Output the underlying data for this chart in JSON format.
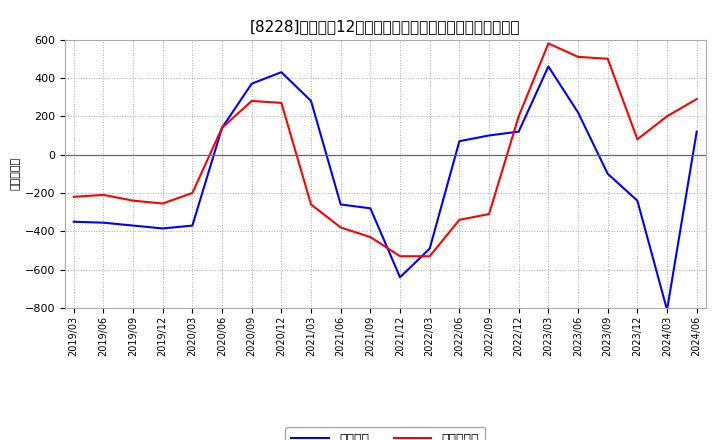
{
  "title": "[8228]　利益の12か月移動合計の対前年同期増減額の推移",
  "ylabel": "（百万円）",
  "background_color": "#ffffff",
  "plot_bg_color": "#ffffff",
  "grid_color": "#aaaaaa",
  "ylim": [
    -800,
    600
  ],
  "yticks": [
    -800,
    -600,
    -400,
    -200,
    0,
    200,
    400,
    600
  ],
  "x_labels": [
    "2019/03",
    "2019/06",
    "2019/09",
    "2019/12",
    "2020/03",
    "2020/06",
    "2020/09",
    "2020/12",
    "2021/03",
    "2021/06",
    "2021/09",
    "2021/12",
    "2022/03",
    "2022/06",
    "2022/09",
    "2022/12",
    "2023/03",
    "2023/06",
    "2023/09",
    "2023/12",
    "2024/03",
    "2024/06"
  ],
  "keijo_rieki": [
    -350,
    -355,
    -370,
    -385,
    -370,
    140,
    370,
    430,
    280,
    -260,
    -280,
    -640,
    -490,
    70,
    100,
    120,
    460,
    220,
    -100,
    -240,
    -810,
    120
  ],
  "toki_junrieki": [
    -220,
    -210,
    -240,
    -255,
    -200,
    140,
    280,
    270,
    -260,
    -380,
    -430,
    -530,
    -530,
    -340,
    -310,
    200,
    580,
    510,
    500,
    80,
    200,
    290
  ],
  "keijo_color": "#0000ff",
  "junrieki_color": "#ff0000",
  "legend_keijo": "経常利益",
  "legend_junrieki": "当期純利益",
  "line_width": 1.5,
  "title_fontsize": 11,
  "ylabel_fontsize": 8,
  "tick_fontsize": 7,
  "legend_fontsize": 9
}
